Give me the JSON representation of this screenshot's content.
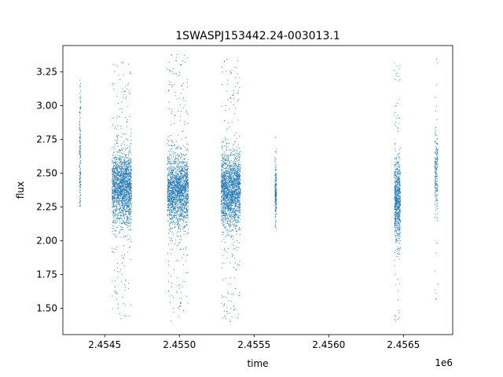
{
  "chart_data": {
    "type": "scatter",
    "title": "1SWASPJ153442.24-003013.1",
    "xlabel": "time",
    "ylabel": "flux",
    "x_offset_label": "1e6",
    "xlim": [
      2.45422,
      2.45683
    ],
    "ylim": [
      1.305,
      3.445
    ],
    "x_ticks": [
      2.4545,
      2.455,
      2.4555,
      2.456,
      2.4565
    ],
    "x_tick_labels": [
      "2.4545",
      "2.4550",
      "2.4555",
      "2.4560",
      "2.4565"
    ],
    "y_ticks": [
      1.5,
      1.75,
      2.0,
      2.25,
      2.5,
      2.75,
      3.0,
      3.25
    ],
    "y_tick_labels": [
      "1.50",
      "1.75",
      "2.00",
      "2.25",
      "2.50",
      "2.75",
      "3.00",
      "3.25"
    ],
    "grid": false,
    "marker_color": "#1f77b4",
    "series": [
      {
        "observing_seasons": [
          {
            "x_range": [
              2.45433,
              2.45434
            ],
            "y_center": 2.55,
            "y_spread": 0.3,
            "y_range": [
              2.25,
              3.2
            ]
          },
          {
            "x_range": [
              2.45455,
              2.45468
            ],
            "y_center": 2.4,
            "y_spread": 0.13,
            "y_range": [
              1.42,
              3.33
            ]
          },
          {
            "x_range": [
              2.45492,
              2.45506
            ],
            "y_center": 2.37,
            "y_spread": 0.13,
            "y_range": [
              1.4,
              3.38
            ]
          },
          {
            "x_range": [
              2.45528,
              2.45541
            ],
            "y_center": 2.37,
            "y_spread": 0.13,
            "y_range": [
              1.4,
              3.35
            ]
          },
          {
            "x_range": [
              2.45564,
              2.45565
            ],
            "y_center": 2.35,
            "y_spread": 0.1,
            "y_range": [
              2.0,
              2.77
            ]
          },
          {
            "x_range": [
              2.45644,
              2.45648
            ],
            "y_center": 2.3,
            "y_spread": 0.15,
            "y_range": [
              1.4,
              3.32
            ]
          },
          {
            "x_range": [
              2.45671,
              2.45673
            ],
            "y_center": 2.5,
            "y_spread": 0.15,
            "y_range": [
              1.55,
              3.35
            ]
          }
        ]
      }
    ]
  }
}
